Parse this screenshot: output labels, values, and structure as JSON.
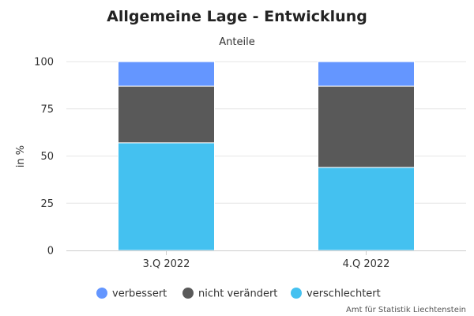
{
  "chart_data": {
    "type": "bar",
    "stacked": true,
    "title": "Allgemeine Lage - Entwicklung",
    "subtitle": "Anteile",
    "ylabel": "in %",
    "xlabel": "",
    "ylim": [
      0,
      100
    ],
    "yticks": [
      0,
      25,
      50,
      75,
      100
    ],
    "categories": [
      "3.Q 2022",
      "4.Q 2022"
    ],
    "series": [
      {
        "name": "verschlechtert",
        "color": "#44c1f0",
        "values": [
          57,
          44
        ]
      },
      {
        "name": "nicht verändert",
        "color": "#595959",
        "values": [
          30,
          43
        ]
      },
      {
        "name": "verbessert",
        "color": "#6496ff",
        "values": [
          13,
          13
        ]
      }
    ],
    "legend": {
      "position": "bottom",
      "order": [
        "verbessert",
        "nicht verändert",
        "verschlechtert"
      ]
    },
    "grid": true
  },
  "credit": "Amt für Statistik Liechtenstein"
}
